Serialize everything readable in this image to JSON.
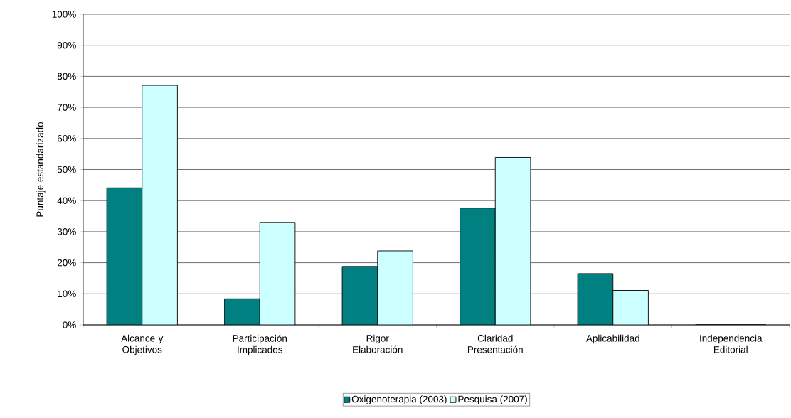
{
  "chart_data": {
    "type": "bar",
    "ylabel": "Puntaje estandarizado",
    "categories": [
      "Alcance y Objetivos",
      "Participación Implicados",
      "Rigor Elaboración",
      "Claridad Presentación",
      "Aplicabilidad",
      "Independencia Editorial"
    ],
    "series": [
      {
        "name": "Oxigenoterapia (2003)",
        "color": "#008080",
        "values": [
          44.1,
          8.4,
          18.8,
          37.6,
          16.5,
          0
        ]
      },
      {
        "name": "Pesquisa (2007)",
        "color": "#ccffff",
        "values": [
          77.1,
          33.0,
          23.8,
          53.9,
          11.1,
          0
        ]
      }
    ],
    "ylim": [
      0,
      100
    ],
    "yticks": [
      {
        "value": 0,
        "label": "0%"
      },
      {
        "value": 10,
        "label": "10%"
      },
      {
        "value": 20,
        "label": "20%"
      },
      {
        "value": 30,
        "label": "30%"
      },
      {
        "value": 40,
        "label": "40%"
      },
      {
        "value": 50,
        "label": "50%"
      },
      {
        "value": 60,
        "label": "60%"
      },
      {
        "value": 70,
        "label": "70%"
      },
      {
        "value": 80,
        "label": "80%"
      },
      {
        "value": 90,
        "label": "90%"
      },
      {
        "value": 100,
        "label": "100%"
      }
    ],
    "grid": "y",
    "legend": "bottom"
  }
}
